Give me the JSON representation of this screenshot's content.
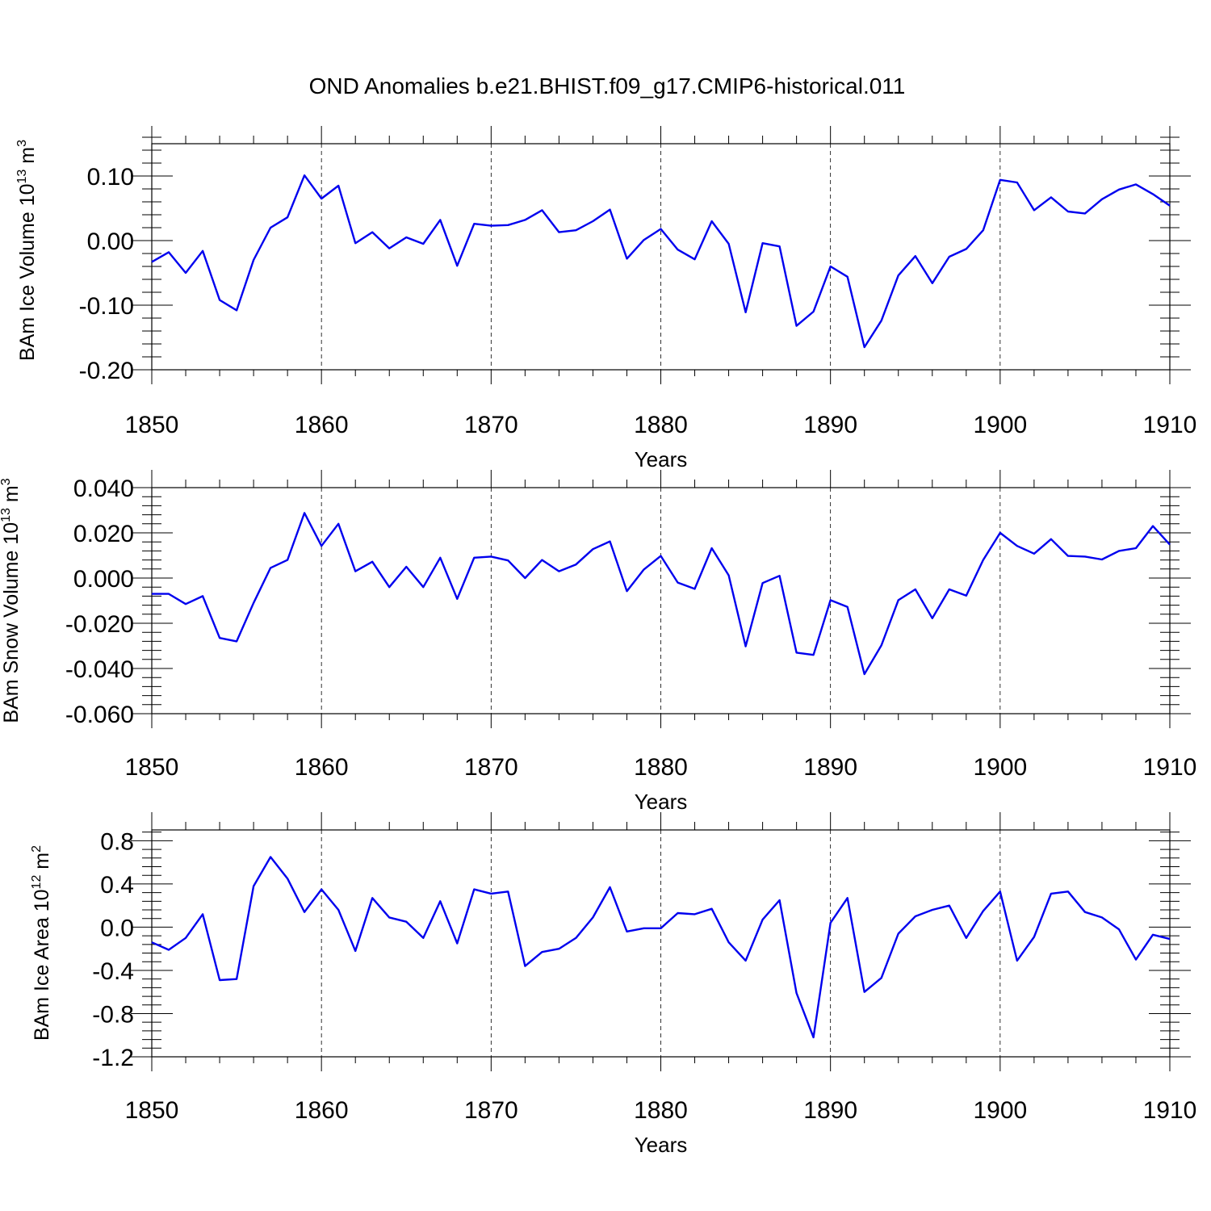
{
  "title": "OND Anomalies b.e21.BHIST.f09_g17.CMIP6-historical.011",
  "line_color": "#0000ee",
  "chart_data": [
    {
      "type": "line",
      "ylabel_main": "BAm Ice Volume 10",
      "ylabel_exp": "13",
      "ylabel_unit": " m",
      "ylabel_unit_exp": "3",
      "xlabel": "Years",
      "xlim": [
        1850,
        1910
      ],
      "ylim": [
        -0.2,
        0.15
      ],
      "yticks": [
        -0.2,
        -0.1,
        0.0,
        0.1
      ],
      "ytick_labels": [
        "-0.20",
        "-0.10",
        "0.00",
        "0.10"
      ],
      "xticks": [
        1850,
        1860,
        1870,
        1880,
        1890,
        1900,
        1910
      ],
      "xtick_labels": [
        "1850",
        "1860",
        "1870",
        "1880",
        "1890",
        "1900",
        "1910"
      ],
      "x": [
        1850,
        1851,
        1852,
        1853,
        1854,
        1855,
        1856,
        1857,
        1858,
        1859,
        1860,
        1861,
        1862,
        1863,
        1864,
        1865,
        1866,
        1867,
        1868,
        1869,
        1870,
        1871,
        1872,
        1873,
        1874,
        1875,
        1876,
        1877,
        1878,
        1879,
        1880,
        1881,
        1882,
        1883,
        1884,
        1885,
        1886,
        1887,
        1888,
        1889,
        1890,
        1891,
        1892,
        1893,
        1894,
        1895,
        1896,
        1897,
        1898,
        1899,
        1900,
        1901,
        1902,
        1903,
        1904,
        1905,
        1906,
        1907,
        1908,
        1909,
        1910
      ],
      "values": [
        -0.033,
        -0.018,
        -0.05,
        -0.016,
        -0.092,
        -0.108,
        -0.03,
        0.02,
        0.036,
        0.101,
        0.065,
        0.085,
        -0.004,
        0.013,
        -0.012,
        0.005,
        -0.005,
        0.032,
        -0.039,
        0.026,
        0.023,
        0.024,
        0.032,
        0.047,
        0.013,
        0.016,
        0.03,
        0.048,
        -0.028,
        0.001,
        0.018,
        -0.014,
        -0.029,
        0.03,
        -0.005,
        -0.111,
        -0.004,
        -0.009,
        -0.132,
        -0.11,
        -0.04,
        -0.056,
        -0.165,
        -0.124,
        -0.054,
        -0.024,
        -0.066,
        -0.025,
        -0.013,
        0.016,
        0.094,
        0.09,
        0.047,
        0.067,
        0.045,
        0.042,
        0.064,
        0.079,
        0.087,
        0.072,
        0.054
      ]
    },
    {
      "type": "line",
      "ylabel_main": "BAm Snow Volume 10",
      "ylabel_exp": "13",
      "ylabel_unit": " m",
      "ylabel_unit_exp": "3",
      "xlabel": "Years",
      "xlim": [
        1850,
        1910
      ],
      "ylim": [
        -0.06,
        0.04
      ],
      "yticks": [
        -0.06,
        -0.04,
        -0.02,
        0.0,
        0.02,
        0.04
      ],
      "ytick_labels": [
        "-0.060",
        "-0.040",
        "-0.020",
        "0.000",
        "0.020",
        "0.040"
      ],
      "xticks": [
        1850,
        1860,
        1870,
        1880,
        1890,
        1900,
        1910
      ],
      "xtick_labels": [
        "1850",
        "1860",
        "1870",
        "1880",
        "1890",
        "1900",
        "1910"
      ],
      "x": [
        1850,
        1851,
        1852,
        1853,
        1854,
        1855,
        1856,
        1857,
        1858,
        1859,
        1860,
        1861,
        1862,
        1863,
        1864,
        1865,
        1866,
        1867,
        1868,
        1869,
        1870,
        1871,
        1872,
        1873,
        1874,
        1875,
        1876,
        1877,
        1878,
        1879,
        1880,
        1881,
        1882,
        1883,
        1884,
        1885,
        1886,
        1887,
        1888,
        1889,
        1890,
        1891,
        1892,
        1893,
        1894,
        1895,
        1896,
        1897,
        1898,
        1899,
        1900,
        1901,
        1902,
        1903,
        1904,
        1905,
        1906,
        1907,
        1908,
        1909,
        1910
      ],
      "values": [
        -0.007,
        -0.007,
        -0.0115,
        -0.008,
        -0.0265,
        -0.028,
        -0.011,
        0.0045,
        0.008,
        0.0288,
        0.0142,
        0.024,
        0.003,
        0.0072,
        -0.004,
        0.005,
        -0.004,
        0.009,
        -0.0092,
        0.009,
        0.0095,
        0.0078,
        0.0,
        0.008,
        0.003,
        0.006,
        0.0128,
        0.0162,
        -0.0058,
        0.0038,
        0.0098,
        -0.002,
        -0.0048,
        0.0132,
        0.0012,
        -0.0302,
        -0.0022,
        0.001,
        -0.033,
        -0.034,
        -0.0098,
        -0.0128,
        -0.0425,
        -0.0298,
        -0.0098,
        -0.005,
        -0.0178,
        -0.005,
        -0.0078,
        0.008,
        0.02,
        0.0142,
        0.0108,
        0.0172,
        0.0098,
        0.0095,
        0.0082,
        0.012,
        0.0132,
        0.023,
        0.0148
      ]
    },
    {
      "type": "line",
      "ylabel_main": "BAm Ice Area 10",
      "ylabel_exp": "12",
      "ylabel_unit": " m",
      "ylabel_unit_exp": "2",
      "xlabel": "Years",
      "xlim": [
        1850,
        1910
      ],
      "ylim": [
        -1.2,
        0.9
      ],
      "yticks": [
        -1.2,
        -0.8,
        -0.4,
        0.0,
        0.4,
        0.8
      ],
      "ytick_labels": [
        "-1.2",
        "-0.8",
        "-0.4",
        "0.0",
        "0.4",
        "0.8"
      ],
      "xticks": [
        1850,
        1860,
        1870,
        1880,
        1890,
        1900,
        1910
      ],
      "xtick_labels": [
        "1850",
        "1860",
        "1870",
        "1880",
        "1890",
        "1900",
        "1910"
      ],
      "x": [
        1850,
        1851,
        1852,
        1853,
        1854,
        1855,
        1856,
        1857,
        1858,
        1859,
        1860,
        1861,
        1862,
        1863,
        1864,
        1865,
        1866,
        1867,
        1868,
        1869,
        1870,
        1871,
        1872,
        1873,
        1874,
        1875,
        1876,
        1877,
        1878,
        1879,
        1880,
        1881,
        1882,
        1883,
        1884,
        1885,
        1886,
        1887,
        1888,
        1889,
        1890,
        1891,
        1892,
        1893,
        1894,
        1895,
        1896,
        1897,
        1898,
        1899,
        1900,
        1901,
        1902,
        1903,
        1904,
        1905,
        1906,
        1907,
        1908,
        1909,
        1910
      ],
      "values": [
        -0.14,
        -0.21,
        -0.1,
        0.12,
        -0.49,
        -0.48,
        0.38,
        0.65,
        0.45,
        0.14,
        0.35,
        0.16,
        -0.22,
        0.27,
        0.09,
        0.05,
        -0.1,
        0.24,
        -0.15,
        0.35,
        0.31,
        0.33,
        -0.36,
        -0.23,
        -0.2,
        -0.1,
        0.09,
        0.37,
        -0.04,
        -0.01,
        -0.01,
        0.13,
        0.12,
        0.17,
        -0.14,
        -0.31,
        0.07,
        0.25,
        -0.61,
        -1.02,
        0.04,
        0.27,
        -0.6,
        -0.47,
        -0.06,
        0.1,
        0.16,
        0.2,
        -0.1,
        0.15,
        0.33,
        -0.31,
        -0.09,
        0.31,
        0.33,
        0.14,
        0.09,
        -0.02,
        -0.3,
        -0.07,
        -0.11
      ]
    }
  ]
}
